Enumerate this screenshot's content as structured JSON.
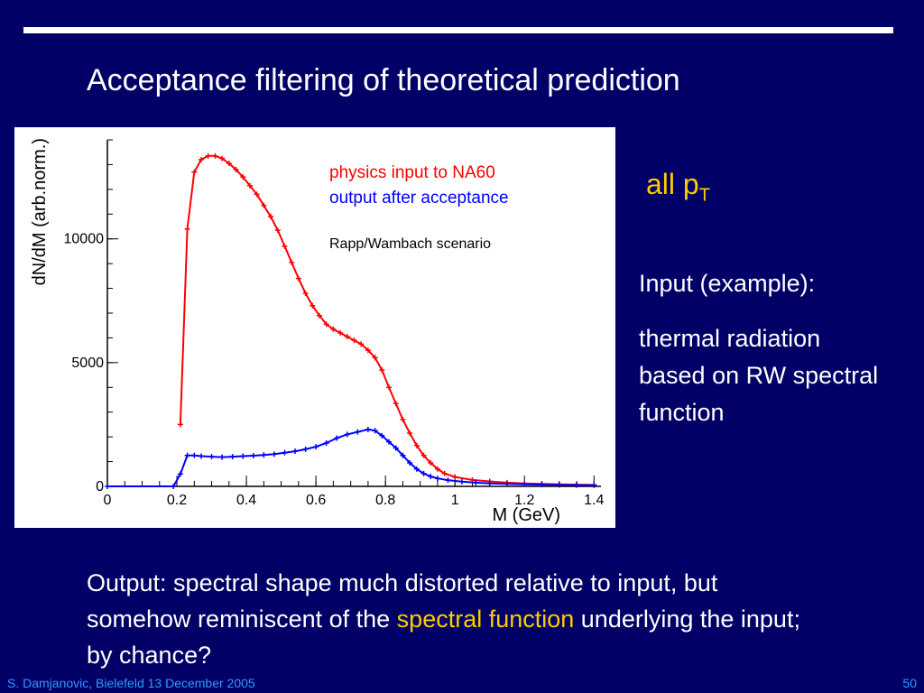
{
  "slide": {
    "title": "Acceptance filtering of theoretical prediction",
    "pt_label_main": "all p",
    "pt_label_sub": "T",
    "side_heading": "Input (example):",
    "side_body": "thermal radiation based on RW spectral function",
    "output_pre": "Output:  spectral shape much distorted relative to input, but somehow reminiscent of the ",
    "output_highlight": "spectral function",
    "output_post": " underlying the input; by chance?",
    "footer_left": "S. Damjanovic, Bielefeld 13 December 2005",
    "footer_right": "50",
    "colors": {
      "background": "#000066",
      "accent": "#ffcc00",
      "footer": "#3399ff"
    }
  },
  "chart_data": {
    "type": "line",
    "xlabel": "M (GeV)",
    "ylabel": "dN/dM (arb.norm.)",
    "xlim": [
      0,
      1.42
    ],
    "ylim": [
      0,
      14000
    ],
    "xticks": [
      0,
      0.2,
      0.4,
      0.6,
      0.8,
      1,
      1.2,
      1.4
    ],
    "yticks": [
      0,
      5000,
      10000
    ],
    "legend": [
      {
        "label": "physics input to NA60",
        "color": "#ff0000"
      },
      {
        "label": "output after acceptance",
        "color": "#0000ff"
      }
    ],
    "annotation": "Rapp/Wambach scenario",
    "series": [
      {
        "name": "physics input to NA60",
        "color": "#ff0000",
        "points": [
          [
            0.21,
            2500
          ],
          [
            0.23,
            10400
          ],
          [
            0.25,
            12700
          ],
          [
            0.27,
            13200
          ],
          [
            0.29,
            13350
          ],
          [
            0.31,
            13350
          ],
          [
            0.33,
            13250
          ],
          [
            0.35,
            13050
          ],
          [
            0.37,
            12800
          ],
          [
            0.39,
            12500
          ],
          [
            0.41,
            12150
          ],
          [
            0.43,
            11800
          ],
          [
            0.45,
            11350
          ],
          [
            0.47,
            10900
          ],
          [
            0.49,
            10350
          ],
          [
            0.51,
            9700
          ],
          [
            0.53,
            9050
          ],
          [
            0.55,
            8400
          ],
          [
            0.57,
            7800
          ],
          [
            0.59,
            7300
          ],
          [
            0.61,
            6900
          ],
          [
            0.63,
            6550
          ],
          [
            0.65,
            6350
          ],
          [
            0.67,
            6200
          ],
          [
            0.69,
            6050
          ],
          [
            0.71,
            5900
          ],
          [
            0.73,
            5750
          ],
          [
            0.75,
            5500
          ],
          [
            0.77,
            5200
          ],
          [
            0.79,
            4700
          ],
          [
            0.81,
            4000
          ],
          [
            0.83,
            3350
          ],
          [
            0.85,
            2700
          ],
          [
            0.87,
            2150
          ],
          [
            0.89,
            1650
          ],
          [
            0.91,
            1250
          ],
          [
            0.93,
            950
          ],
          [
            0.95,
            700
          ],
          [
            0.97,
            520
          ],
          [
            1.0,
            380
          ],
          [
            1.05,
            260
          ],
          [
            1.1,
            200
          ],
          [
            1.15,
            150
          ],
          [
            1.2,
            120
          ],
          [
            1.25,
            100
          ],
          [
            1.3,
            85
          ],
          [
            1.35,
            70
          ],
          [
            1.4,
            60
          ]
        ]
      },
      {
        "name": "output after acceptance",
        "color": "#0000ff",
        "points": [
          [
            0.0,
            0
          ],
          [
            0.19,
            0
          ],
          [
            0.21,
            500
          ],
          [
            0.23,
            1250
          ],
          [
            0.25,
            1250
          ],
          [
            0.27,
            1220
          ],
          [
            0.3,
            1200
          ],
          [
            0.33,
            1180
          ],
          [
            0.36,
            1200
          ],
          [
            0.39,
            1220
          ],
          [
            0.42,
            1240
          ],
          [
            0.45,
            1270
          ],
          [
            0.48,
            1300
          ],
          [
            0.51,
            1360
          ],
          [
            0.54,
            1420
          ],
          [
            0.57,
            1500
          ],
          [
            0.6,
            1600
          ],
          [
            0.63,
            1750
          ],
          [
            0.66,
            1950
          ],
          [
            0.69,
            2100
          ],
          [
            0.72,
            2200
          ],
          [
            0.75,
            2300
          ],
          [
            0.77,
            2250
          ],
          [
            0.79,
            2050
          ],
          [
            0.81,
            1800
          ],
          [
            0.83,
            1550
          ],
          [
            0.85,
            1250
          ],
          [
            0.87,
            950
          ],
          [
            0.89,
            700
          ],
          [
            0.91,
            520
          ],
          [
            0.93,
            400
          ],
          [
            0.95,
            320
          ],
          [
            0.98,
            250
          ],
          [
            1.02,
            190
          ],
          [
            1.06,
            150
          ],
          [
            1.1,
            120
          ],
          [
            1.15,
            100
          ],
          [
            1.2,
            85
          ],
          [
            1.25,
            70
          ],
          [
            1.3,
            60
          ],
          [
            1.35,
            50
          ],
          [
            1.4,
            45
          ]
        ]
      }
    ]
  }
}
